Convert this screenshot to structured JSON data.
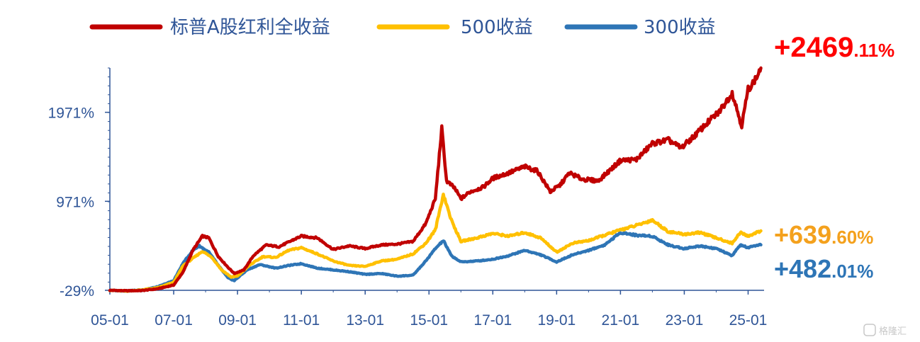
{
  "chart_data": {
    "type": "line",
    "title": "",
    "xlabel": "",
    "ylabel": "",
    "x_ticks": [
      "05-01",
      "07-01",
      "09-01",
      "11-01",
      "13-01",
      "15-01",
      "17-01",
      "19-01",
      "21-01",
      "23-01",
      "25-01"
    ],
    "y_ticks": [
      {
        "value": 1971,
        "label": "1971%"
      },
      {
        "value": 971,
        "label": "971%"
      },
      {
        "value": -29,
        "label": "-29%"
      }
    ],
    "xlim": [
      2005.0,
      2025.5
    ],
    "ylim": [
      -29,
      2469
    ],
    "grid": false,
    "legend_position": "top",
    "series": [
      {
        "name": "标普A股红利全收益",
        "color": "#c00000",
        "end_label": {
          "sign": "+",
          "int": "2469",
          "dec": ".11%"
        },
        "end_color": "#ff0000",
        "points": [
          [
            2005.0,
            -29
          ],
          [
            2005.5,
            -34
          ],
          [
            2006.0,
            -32
          ],
          [
            2006.5,
            -12
          ],
          [
            2007.0,
            30
          ],
          [
            2007.3,
            180
          ],
          [
            2007.6,
            420
          ],
          [
            2007.9,
            580
          ],
          [
            2008.1,
            560
          ],
          [
            2008.4,
            350
          ],
          [
            2008.7,
            230
          ],
          [
            2008.9,
            160
          ],
          [
            2009.2,
            200
          ],
          [
            2009.5,
            360
          ],
          [
            2009.9,
            480
          ],
          [
            2010.3,
            460
          ],
          [
            2010.7,
            530
          ],
          [
            2011.0,
            580
          ],
          [
            2011.5,
            560
          ],
          [
            2012.0,
            430
          ],
          [
            2012.5,
            470
          ],
          [
            2013.0,
            440
          ],
          [
            2013.5,
            480
          ],
          [
            2014.0,
            490
          ],
          [
            2014.5,
            520
          ],
          [
            2014.9,
            720
          ],
          [
            2015.2,
            1000
          ],
          [
            2015.4,
            1790
          ],
          [
            2015.55,
            1200
          ],
          [
            2015.8,
            1120
          ],
          [
            2016.0,
            1000
          ],
          [
            2016.3,
            1080
          ],
          [
            2016.7,
            1130
          ],
          [
            2017.0,
            1230
          ],
          [
            2017.5,
            1290
          ],
          [
            2018.0,
            1360
          ],
          [
            2018.4,
            1310
          ],
          [
            2018.8,
            1080
          ],
          [
            2019.1,
            1150
          ],
          [
            2019.4,
            1290
          ],
          [
            2019.8,
            1220
          ],
          [
            2020.3,
            1200
          ],
          [
            2020.7,
            1330
          ],
          [
            2021.0,
            1430
          ],
          [
            2021.5,
            1440
          ],
          [
            2022.0,
            1620
          ],
          [
            2022.5,
            1660
          ],
          [
            2022.9,
            1570
          ],
          [
            2023.3,
            1700
          ],
          [
            2023.8,
            1880
          ],
          [
            2024.1,
            1980
          ],
          [
            2024.5,
            2190
          ],
          [
            2024.8,
            1820
          ],
          [
            2025.0,
            2230
          ],
          [
            2025.25,
            2350
          ],
          [
            2025.4,
            2469
          ]
        ]
      },
      {
        "name": "500收益",
        "color": "#ffc000",
        "end_label": {
          "sign": "+",
          "int": "639",
          "dec": ".60%"
        },
        "end_color": "#f4a11d",
        "points": [
          [
            2005.0,
            -29
          ],
          [
            2005.5,
            -38
          ],
          [
            2006.0,
            -25
          ],
          [
            2006.5,
            0
          ],
          [
            2007.0,
            60
          ],
          [
            2007.3,
            250
          ],
          [
            2007.6,
            330
          ],
          [
            2007.9,
            410
          ],
          [
            2008.2,
            340
          ],
          [
            2008.5,
            200
          ],
          [
            2008.8,
            120
          ],
          [
            2009.0,
            130
          ],
          [
            2009.4,
            260
          ],
          [
            2009.8,
            350
          ],
          [
            2010.2,
            340
          ],
          [
            2010.6,
            420
          ],
          [
            2011.0,
            450
          ],
          [
            2011.5,
            380
          ],
          [
            2012.0,
            300
          ],
          [
            2012.5,
            250
          ],
          [
            2013.0,
            240
          ],
          [
            2013.5,
            300
          ],
          [
            2014.0,
            320
          ],
          [
            2014.5,
            380
          ],
          [
            2014.9,
            500
          ],
          [
            2015.2,
            650
          ],
          [
            2015.45,
            1050
          ],
          [
            2015.7,
            760
          ],
          [
            2016.0,
            520
          ],
          [
            2016.5,
            560
          ],
          [
            2017.0,
            610
          ],
          [
            2017.5,
            580
          ],
          [
            2018.0,
            620
          ],
          [
            2018.5,
            560
          ],
          [
            2019.0,
            400
          ],
          [
            2019.5,
            500
          ],
          [
            2020.0,
            530
          ],
          [
            2020.5,
            590
          ],
          [
            2021.0,
            650
          ],
          [
            2021.5,
            700
          ],
          [
            2022.0,
            760
          ],
          [
            2022.5,
            630
          ],
          [
            2023.0,
            600
          ],
          [
            2023.5,
            620
          ],
          [
            2024.0,
            560
          ],
          [
            2024.5,
            500
          ],
          [
            2024.75,
            620
          ],
          [
            2025.0,
            580
          ],
          [
            2025.4,
            639
          ]
        ]
      },
      {
        "name": "300收益",
        "color": "#2e75b6",
        "end_label": {
          "sign": "+",
          "int": "482",
          "dec": ".01%"
        },
        "end_color": "#2e75b6",
        "points": [
          [
            2005.0,
            -29
          ],
          [
            2005.5,
            -36
          ],
          [
            2006.0,
            -25
          ],
          [
            2006.5,
            10
          ],
          [
            2007.0,
            80
          ],
          [
            2007.3,
            280
          ],
          [
            2007.6,
            420
          ],
          [
            2007.8,
            470
          ],
          [
            2008.1,
            400
          ],
          [
            2008.4,
            250
          ],
          [
            2008.7,
            110
          ],
          [
            2008.9,
            80
          ],
          [
            2009.3,
            200
          ],
          [
            2009.7,
            260
          ],
          [
            2010.2,
            220
          ],
          [
            2010.6,
            250
          ],
          [
            2011.0,
            270
          ],
          [
            2011.5,
            220
          ],
          [
            2012.0,
            200
          ],
          [
            2012.5,
            180
          ],
          [
            2013.0,
            150
          ],
          [
            2013.5,
            160
          ],
          [
            2014.0,
            130
          ],
          [
            2014.5,
            140
          ],
          [
            2014.9,
            300
          ],
          [
            2015.2,
            440
          ],
          [
            2015.45,
            530
          ],
          [
            2015.7,
            360
          ],
          [
            2016.0,
            290
          ],
          [
            2016.5,
            300
          ],
          [
            2017.0,
            320
          ],
          [
            2017.5,
            360
          ],
          [
            2018.0,
            420
          ],
          [
            2018.5,
            370
          ],
          [
            2019.0,
            290
          ],
          [
            2019.5,
            370
          ],
          [
            2020.0,
            420
          ],
          [
            2020.5,
            480
          ],
          [
            2021.0,
            620
          ],
          [
            2021.5,
            590
          ],
          [
            2022.0,
            580
          ],
          [
            2022.5,
            480
          ],
          [
            2023.0,
            440
          ],
          [
            2023.5,
            470
          ],
          [
            2024.0,
            440
          ],
          [
            2024.5,
            360
          ],
          [
            2024.75,
            480
          ],
          [
            2025.0,
            450
          ],
          [
            2025.4,
            482
          ]
        ]
      }
    ]
  },
  "watermark": "格隆汇"
}
